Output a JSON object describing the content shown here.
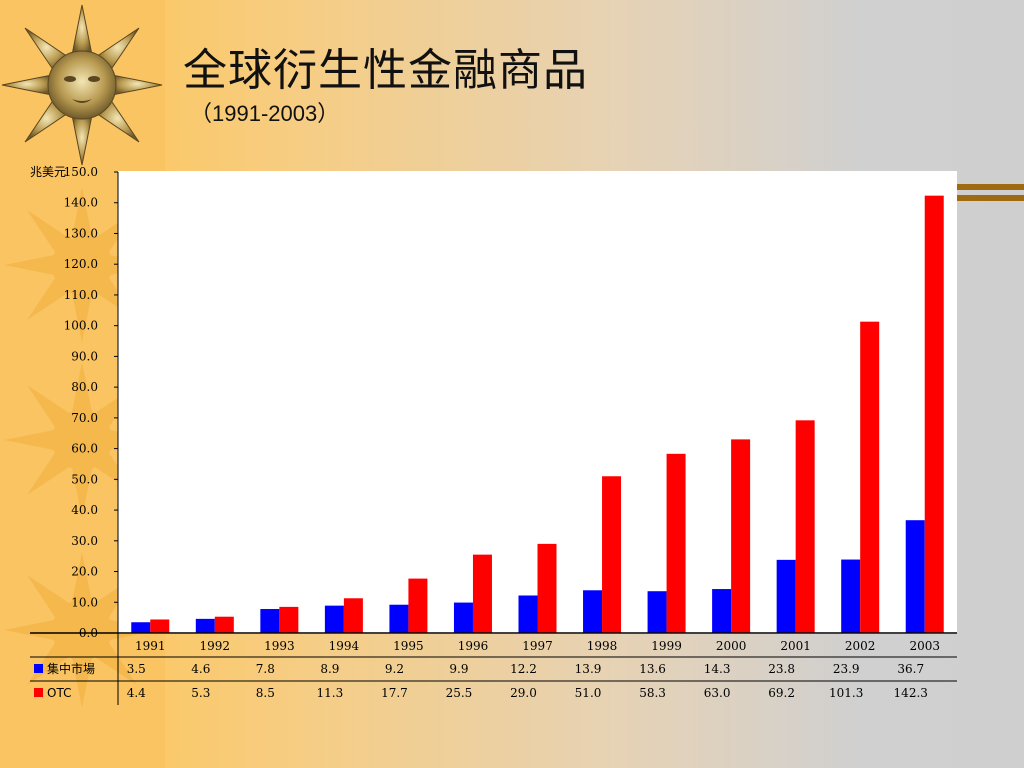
{
  "title": "全球衍生性金融商品",
  "subtitle": "（1991-2003）",
  "chart_data": {
    "type": "bar",
    "ylabel": "兆美元",
    "categories": [
      "1991",
      "1992",
      "1993",
      "1994",
      "1995",
      "1996",
      "1997",
      "1998",
      "1999",
      "2000",
      "2001",
      "2002",
      "2003"
    ],
    "series": [
      {
        "name": "集中市場",
        "color": "#0000ff",
        "values": [
          3.5,
          4.6,
          7.8,
          8.9,
          9.2,
          9.9,
          12.2,
          13.9,
          13.6,
          14.3,
          23.8,
          23.9,
          36.7
        ],
        "labels": [
          "3.5",
          "4.6",
          "7.8",
          "8.9",
          "9.2",
          "9.9",
          "12.2",
          "13.9",
          "13.6",
          "14.3",
          "23.8",
          "23.9",
          "36.7"
        ]
      },
      {
        "name": "OTC",
        "color": "#ff0000",
        "values": [
          4.4,
          5.3,
          8.5,
          11.3,
          17.7,
          25.5,
          29.0,
          51.0,
          58.3,
          63.0,
          69.2,
          101.3,
          142.3
        ],
        "labels": [
          "4.4",
          "5.3",
          "8.5",
          "11.3",
          "17.7",
          "25.5",
          "29.0",
          "51.0",
          "58.3",
          "63.0",
          "69.2",
          "101.3",
          "142.3"
        ]
      }
    ],
    "ylim": [
      0,
      150
    ],
    "yticks": [
      "0.0",
      "10.0",
      "20.0",
      "30.0",
      "40.0",
      "50.0",
      "60.0",
      "70.0",
      "80.0",
      "90.0",
      "100.0",
      "110.0",
      "120.0",
      "130.0",
      "140.0",
      "150.0"
    ],
    "legend": "data-table-below",
    "grid": false
  }
}
